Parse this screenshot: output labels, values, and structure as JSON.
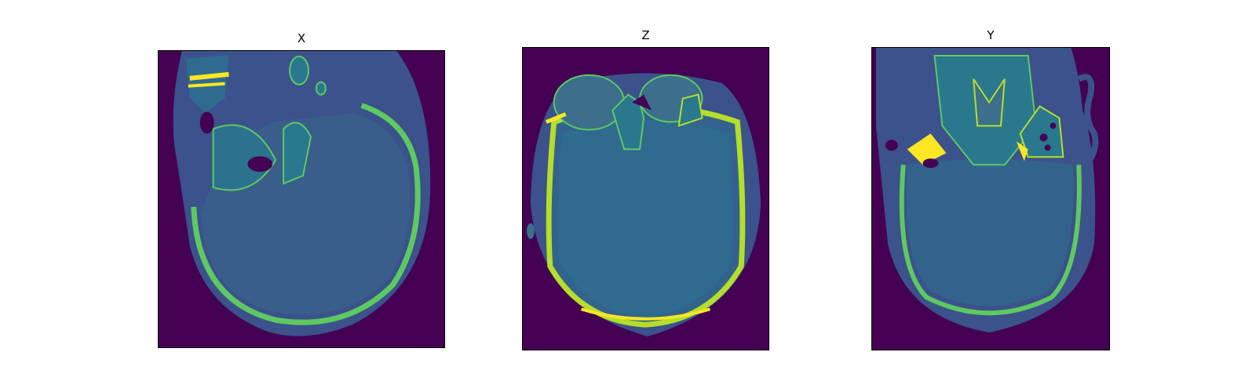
{
  "figure": {
    "panels": [
      {
        "title": "X"
      },
      {
        "title": "Z"
      },
      {
        "title": "Y"
      }
    ],
    "colormap": {
      "background": "#440154",
      "soft_tissue": "#3b528b",
      "brain": "#33638d",
      "bone": "#5ec962",
      "dense_bone": "#fde725"
    }
  }
}
